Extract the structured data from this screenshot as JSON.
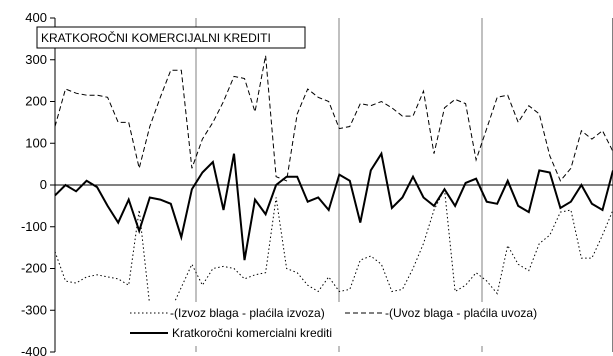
{
  "chart_data": {
    "type": "line",
    "title": "KRATKOROČNI KOMERCIJALNI KREDITI",
    "ylim": [
      -400,
      400
    ],
    "yticks": [
      400,
      300,
      200,
      100,
      0,
      -100,
      -200,
      -300,
      -400
    ],
    "grid": {
      "vertical_gridlines": true,
      "horizontal_gridlines": false
    },
    "legend_position": "bottom-center",
    "series": [
      {
        "name": "-(Izvoz blaga - plaćila izvoza)",
        "style": "dotted",
        "color": "#000000",
        "values": [
          -160,
          -230,
          -235,
          -220,
          -215,
          -220,
          -225,
          -240,
          -60,
          -290,
          -300,
          -300,
          -245,
          -190,
          -240,
          -200,
          -195,
          -200,
          -225,
          -215,
          -210,
          -30,
          -200,
          -210,
          -240,
          -255,
          -220,
          -255,
          -250,
          -180,
          -170,
          -190,
          -255,
          -250,
          -200,
          -140,
          -60,
          -10,
          -255,
          -240,
          -210,
          -230,
          -260,
          -145,
          -190,
          -205,
          -140,
          -120,
          -65,
          -60,
          -175,
          -175,
          -120,
          -60
        ]
      },
      {
        "name": "-(Uvoz blaga - plaćila uvoza)",
        "style": "dashed",
        "color": "#000000",
        "values": [
          140,
          230,
          220,
          215,
          215,
          210,
          150,
          150,
          40,
          140,
          210,
          275,
          275,
          40,
          110,
          150,
          200,
          260,
          255,
          175,
          310,
          20,
          10,
          170,
          230,
          210,
          200,
          135,
          140,
          195,
          190,
          200,
          185,
          165,
          165,
          225,
          75,
          185,
          205,
          195,
          60,
          135,
          210,
          215,
          150,
          190,
          170,
          70,
          10,
          40,
          130,
          110,
          130,
          80
        ]
      },
      {
        "name": "Kratkoročni komercialni krediti",
        "style": "solid",
        "color": "#000000",
        "values": [
          -25,
          0,
          -15,
          10,
          -5,
          -50,
          -90,
          -35,
          -110,
          -30,
          -35,
          -45,
          -125,
          -10,
          30,
          55,
          -60,
          75,
          -180,
          -35,
          -70,
          0,
          20,
          20,
          -40,
          -30,
          -60,
          25,
          10,
          -90,
          35,
          75,
          -55,
          -30,
          20,
          -30,
          -50,
          -10,
          -50,
          5,
          15,
          -40,
          -45,
          10,
          -50,
          -65,
          35,
          30,
          -55,
          -40,
          0,
          -45,
          -60,
          35
        ]
      }
    ]
  }
}
